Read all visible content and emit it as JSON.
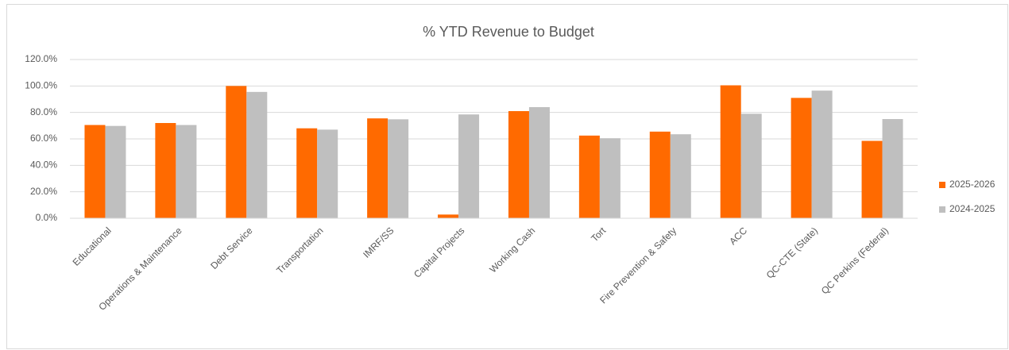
{
  "chart_data": {
    "type": "bar",
    "title": "% YTD Revenue to Budget",
    "categories": [
      "Educational",
      "Operations & Maintenance",
      "Debt Service",
      "Transportation",
      "IMRF/SS",
      "Capital Projects",
      "Working Cash",
      "Tort",
      "Fire Prevention & Safety",
      "ACC",
      "QC-CTE (State)",
      "QC Perkins (Federal)"
    ],
    "series": [
      {
        "name": "2025-2026",
        "color": "#ff6a00",
        "values": [
          70.5,
          72,
          100,
          68,
          75.5,
          2.8,
          81,
          62.5,
          65.5,
          100.5,
          91,
          58.5
        ]
      },
      {
        "name": "2024-2025",
        "color": "#bfbfbf",
        "values": [
          69.8,
          70.5,
          95.5,
          67,
          74.8,
          78.5,
          84,
          60.5,
          63.5,
          79,
          96.5,
          75
        ]
      }
    ],
    "ylim": [
      0,
      120
    ],
    "yticks": [
      {
        "value": 0,
        "label": "0.0%"
      },
      {
        "value": 20,
        "label": "20.0%"
      },
      {
        "value": 40,
        "label": "40.0%"
      },
      {
        "value": 60,
        "label": "60.0%"
      },
      {
        "value": 80,
        "label": "80.0%"
      },
      {
        "value": 100,
        "label": "100.0%"
      },
      {
        "value": 120,
        "label": "120.0%"
      }
    ],
    "grid": true,
    "legend": "right"
  }
}
